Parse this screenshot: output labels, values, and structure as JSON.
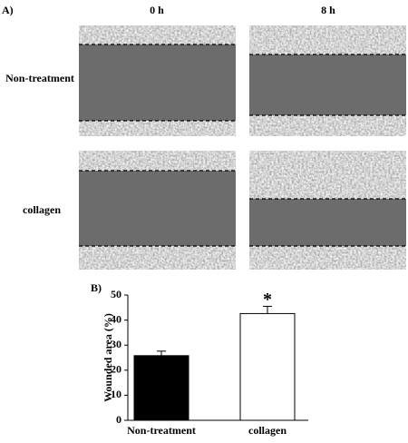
{
  "figure": {
    "panel_a_label": "A)",
    "panel_b_label": "B)",
    "columns": [
      "0 h",
      "8 h"
    ],
    "rows": [
      "Non-treatment",
      "collagen"
    ]
  },
  "chart_data": {
    "type": "bar",
    "ylabel": "Wounded area (%)",
    "categories": [
      "Non-treatment",
      "collagen"
    ],
    "values": [
      25.8,
      42.6
    ],
    "errors": [
      1.8,
      2.9
    ],
    "colors": [
      "#000000",
      "#ffffff"
    ],
    "annotation": "*",
    "ylim": [
      0,
      50
    ],
    "yticks": [
      0,
      10,
      20,
      30,
      40,
      50
    ],
    "grid": false
  }
}
